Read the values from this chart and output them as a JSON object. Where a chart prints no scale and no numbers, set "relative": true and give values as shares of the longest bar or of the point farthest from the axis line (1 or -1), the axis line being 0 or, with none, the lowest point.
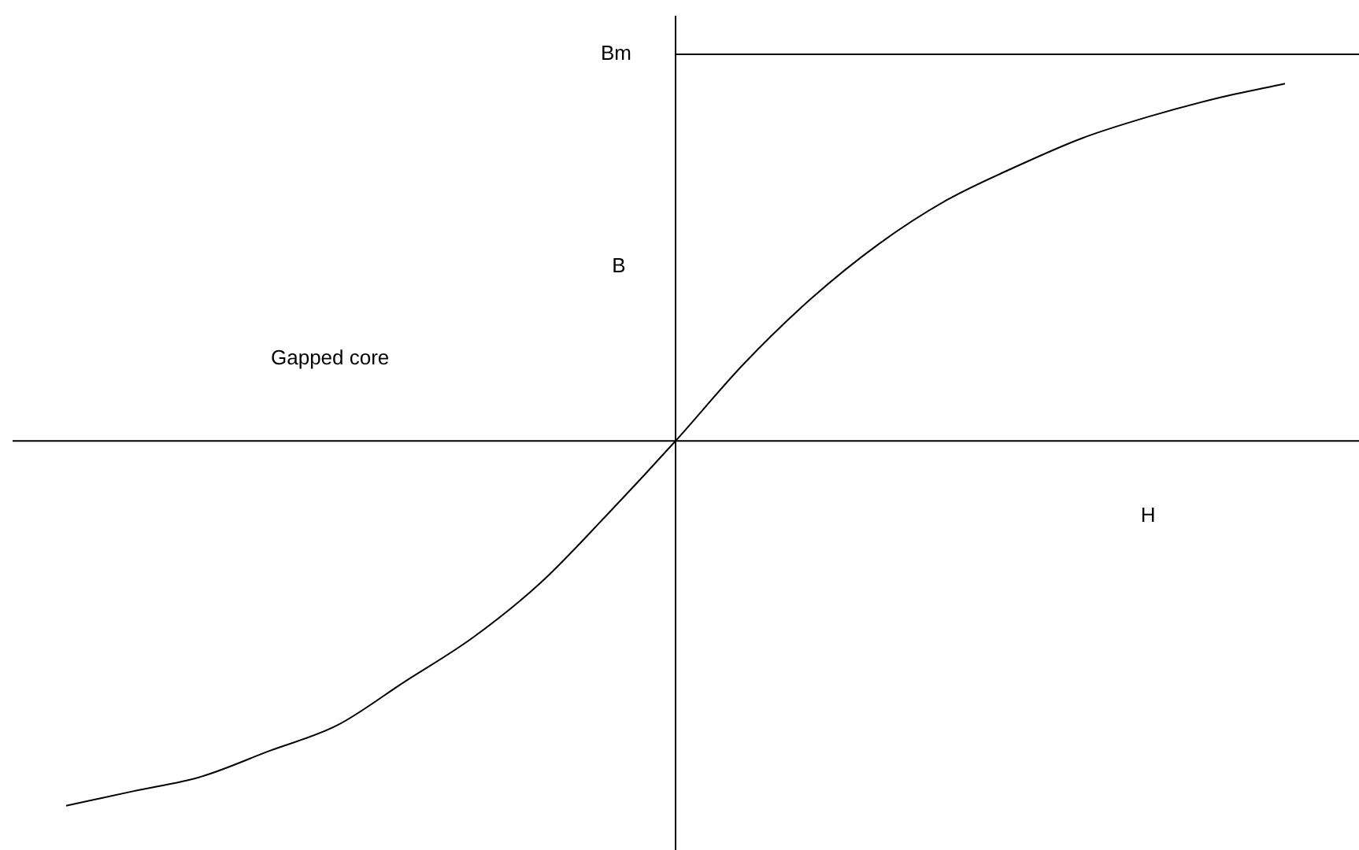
{
  "chart_data": {
    "type": "line",
    "relative": true,
    "xlabel": "H",
    "ylabel": "B",
    "annotations": [
      "Gapped core"
    ],
    "categories": [
      null,
      null,
      null,
      null,
      null,
      null,
      null,
      null,
      null,
      null,
      null,
      null,
      null,
      null,
      null,
      null,
      null,
      null,
      null
    ],
    "series": [
      {
        "color": "#000000",
        "values": [
          -1,
          -0.96,
          -0.92,
          -0.85,
          -0.78,
          -0.66,
          -0.54,
          -0.39,
          -0.2,
          0,
          0.21,
          0.39,
          0.54,
          0.66,
          0.75,
          0.83,
          0.89,
          0.94,
          0.98
        ]
      }
    ],
    "ref_lines": [
      {
        "axis": "y",
        "value": 1.06,
        "label": "Bm",
        "color": "#000000"
      }
    ],
    "legend": false,
    "marker": "none",
    "line_style": "solid"
  }
}
